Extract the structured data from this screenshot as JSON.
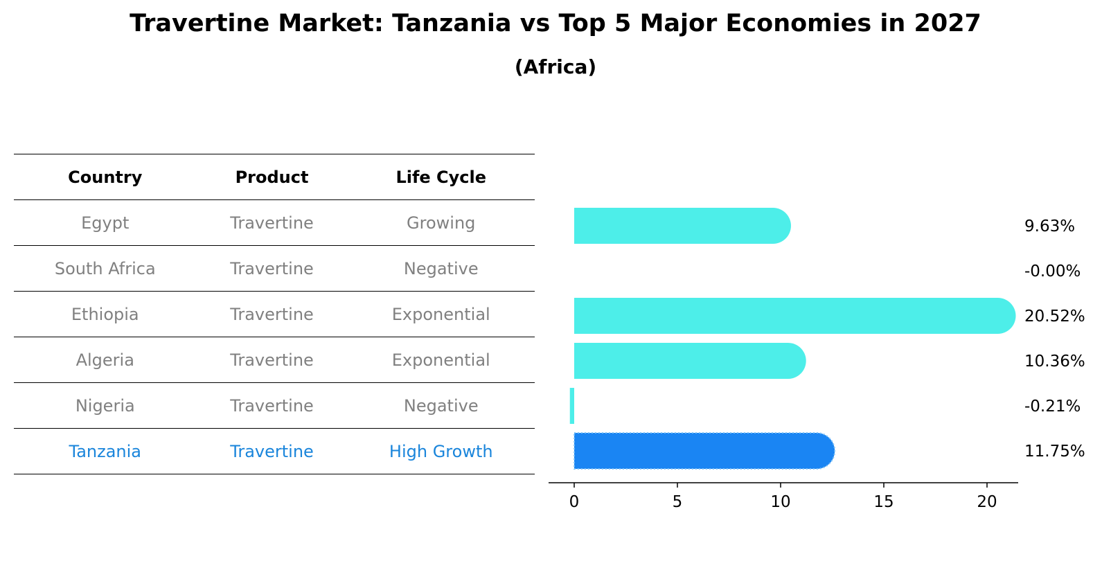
{
  "title": "Travertine Market: Tanzania vs Top 5 Major Economies in 2027",
  "subtitle": "(Africa)",
  "table": {
    "headers": [
      "Country",
      "Product",
      "Life Cycle"
    ],
    "rows": [
      {
        "country": "Egypt",
        "product": "Travertine",
        "life_cycle": "Growing"
      },
      {
        "country": "South Africa",
        "product": "Travertine",
        "life_cycle": "Negative"
      },
      {
        "country": "Ethiopia",
        "product": "Travertine",
        "life_cycle": "Exponential"
      },
      {
        "country": "Algeria",
        "product": "Travertine",
        "life_cycle": "Exponential"
      },
      {
        "country": "Nigeria",
        "product": "Travertine",
        "life_cycle": "Negative"
      },
      {
        "country": "Tanzania",
        "product": "Travertine",
        "life_cycle": "High Growth"
      }
    ]
  },
  "colors": {
    "bar": "#4deee9",
    "highlight_bar": "#1a85f3",
    "highlight_text": "#1a85db",
    "muted_text": "#808080"
  },
  "chart_data": {
    "type": "bar",
    "orientation": "horizontal",
    "categories": [
      "Egypt",
      "South Africa",
      "Ethiopia",
      "Algeria",
      "Nigeria",
      "Tanzania"
    ],
    "values": [
      9.63,
      -0.0,
      20.52,
      10.36,
      -0.21,
      11.75
    ],
    "value_labels": [
      "9.63%",
      "-0.00%",
      "20.52%",
      "10.36%",
      "-0.21%",
      "11.75%"
    ],
    "highlight": "Tanzania",
    "xlim": [
      -1.25,
      21.5
    ],
    "xticks": [
      0,
      5,
      10,
      15,
      20
    ],
    "xlabel": "",
    "ylabel": "",
    "grid": false
  }
}
